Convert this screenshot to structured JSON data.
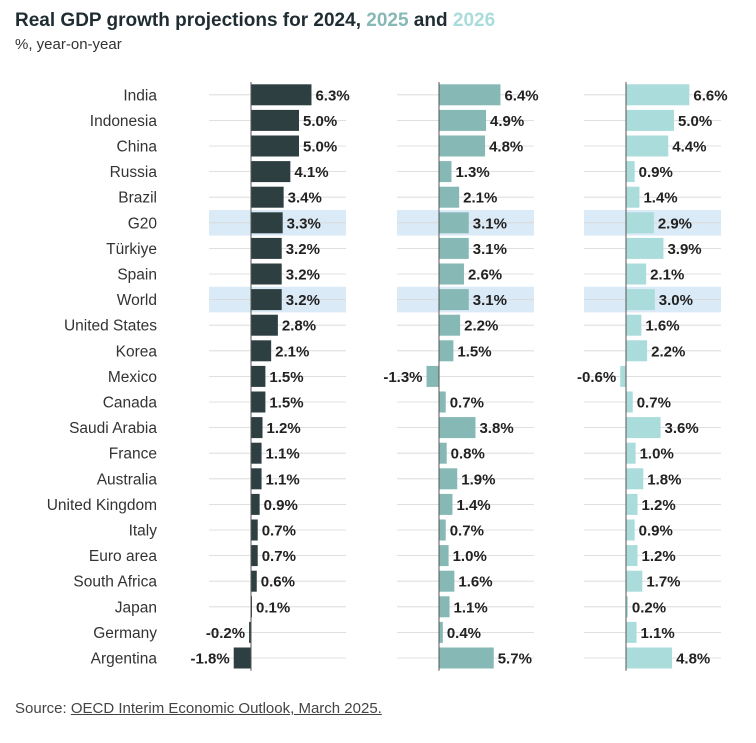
{
  "header": {
    "title_prefix": "Real GDP growth projections for ",
    "year_1": "2024",
    "sep_1": ", ",
    "year_2": "2025",
    "sep_2": " and ",
    "year_3": "2026",
    "subtitle": "%, year-on-year"
  },
  "footer": {
    "source_label": "Source: ",
    "source_link": "OECD Interim Economic Outlook, March 2025."
  },
  "colors": {
    "series_2024": "#2e3f42",
    "series_2025": "#86b8b6",
    "series_2026": "#a9dcdb",
    "highlight": "#dbeaf7",
    "grid": "#d6d6d6",
    "title": "#1f2d33"
  },
  "chart_data": {
    "type": "bar",
    "orientation": "horizontal",
    "categories": [
      "India",
      "Indonesia",
      "China",
      "Russia",
      "Brazil",
      "G20",
      "Türkiye",
      "Spain",
      "World",
      "United States",
      "Korea",
      "Mexico",
      "Canada",
      "Saudi Arabia",
      "France",
      "Australia",
      "United Kingdom",
      "Italy",
      "Euro area",
      "South Africa",
      "Japan",
      "Germany",
      "Argentina"
    ],
    "highlighted_categories": [
      "G20",
      "World"
    ],
    "series": [
      {
        "name": "2024",
        "values": [
          6.3,
          5.0,
          5.0,
          4.1,
          3.4,
          3.3,
          3.2,
          3.2,
          3.2,
          2.8,
          2.1,
          1.5,
          1.5,
          1.2,
          1.1,
          1.1,
          0.9,
          0.7,
          0.7,
          0.6,
          0.1,
          -0.2,
          -1.8
        ]
      },
      {
        "name": "2025",
        "values": [
          6.4,
          4.9,
          4.8,
          1.3,
          2.1,
          3.1,
          3.1,
          2.6,
          3.1,
          2.2,
          1.5,
          -1.3,
          0.7,
          3.8,
          0.8,
          1.9,
          1.4,
          0.7,
          1.0,
          1.6,
          1.1,
          0.4,
          5.7
        ]
      },
      {
        "name": "2026",
        "values": [
          6.6,
          5.0,
          4.4,
          0.9,
          1.4,
          2.9,
          3.9,
          2.1,
          3.0,
          1.6,
          2.2,
          -0.6,
          0.7,
          3.6,
          1.0,
          1.8,
          1.2,
          0.9,
          1.2,
          1.7,
          0.2,
          1.1,
          4.8
        ]
      }
    ],
    "value_suffix": "%",
    "title": "Real GDP growth projections for 2024, 2025 and 2026",
    "subtitle": "%, year-on-year",
    "xlabel": "",
    "ylabel": "",
    "grid": false,
    "legend": "title"
  }
}
